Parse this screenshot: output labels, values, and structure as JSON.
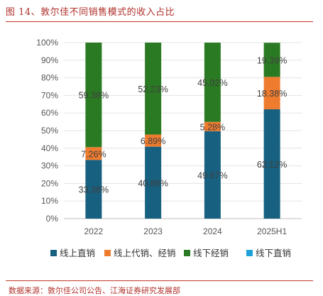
{
  "title": "图 14、敦尔佳不同销售模式的收入占比",
  "source": "数据来源：敦尔佳公司公告、江海证券研究发展部",
  "chart_data": {
    "type": "bar",
    "stacked": true,
    "categories": [
      "2022",
      "2023",
      "2024",
      "2025H1"
    ],
    "series": [
      {
        "name": "线上直销",
        "color": "#17607f",
        "values": [
          33.36,
          40.88,
          49.67,
          62.12
        ],
        "labels": [
          "33.36%",
          "40.88%",
          "49.67%",
          "62.12%"
        ]
      },
      {
        "name": "线上代销、经销",
        "color": "#ef7c2e",
        "values": [
          7.26,
          6.89,
          5.28,
          18.38
        ],
        "labels": [
          "7.26%",
          "6.89%",
          "5.28%",
          "18.38%"
        ]
      },
      {
        "name": "线下经销",
        "color": "#2a7a23",
        "values": [
          59.38,
          52.23,
          45.02,
          19.39
        ],
        "labels": [
          "59.38%",
          "52.23%",
          "45.02%",
          "19.39%"
        ]
      },
      {
        "name": "线下直销",
        "color": "#1ea0d8",
        "values": [
          0,
          0,
          0,
          0
        ],
        "labels": [
          "",
          "",
          "",
          ""
        ]
      }
    ],
    "yticks": [
      "0%",
      "10%",
      "20%",
      "30%",
      "40%",
      "50%",
      "60%",
      "70%",
      "80%",
      "90%",
      "100%"
    ],
    "ylim": [
      0,
      100
    ],
    "grid": true,
    "legend": "bottom"
  }
}
